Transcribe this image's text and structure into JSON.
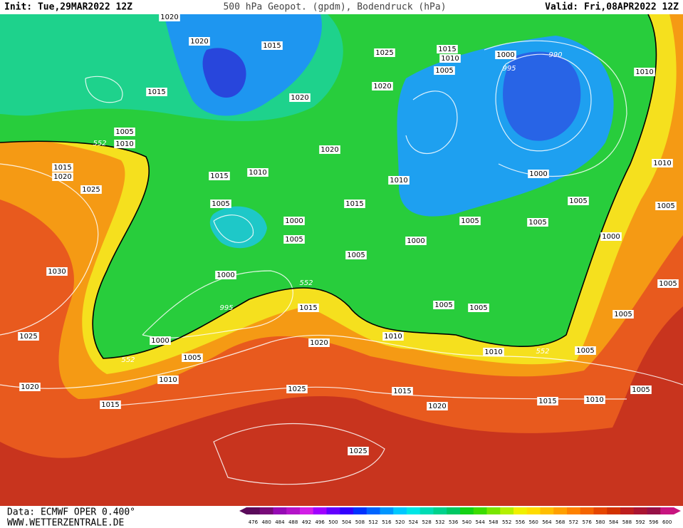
{
  "header": {
    "init": "Init: Tue,29MAR2022 12Z",
    "title": "500 hPa Geopot. (gpdm), Bodendruck (hPa)",
    "valid": "Valid: Fri,08APR2022 12Z"
  },
  "footer": {
    "source": "Data: ECMWF OPER 0.400°",
    "site": "WWW.WETTERZENTRALE.DE"
  },
  "map": {
    "contour_labels": [
      1020,
      1020,
      1015,
      1015,
      1005,
      552,
      1010,
      1015,
      1020,
      1025,
      1030,
      1025,
      1020,
      1015,
      1015,
      1010,
      1005,
      1000,
      1005,
      1000,
      995,
      1000,
      1005,
      552,
      1010,
      1020,
      1025,
      1025,
      1015,
      552,
      1020,
      1020,
      1025,
      1020,
      1015,
      1010,
      1005,
      1000,
      995,
      990,
      1010,
      1000,
      1010,
      1015,
      1005,
      1005,
      1005,
      1000,
      1005,
      1000,
      1005,
      1010,
      1005,
      1005,
      1010,
      1010,
      552,
      1005,
      1005,
      1015,
      1020,
      1015,
      1010,
      1005,
      1005
    ]
  },
  "legend": {
    "labels": [
      476,
      480,
      484,
      488,
      492,
      496,
      500,
      504,
      508,
      512,
      516,
      520,
      524,
      528,
      532,
      536,
      540,
      544,
      548,
      552,
      556,
      560,
      564,
      568,
      572,
      576,
      580,
      584,
      588,
      592,
      596,
      600
    ],
    "colors": [
      "#5a0a5a",
      "#780a78",
      "#960ab4",
      "#b414c8",
      "#d21ee6",
      "#a000ff",
      "#6400ff",
      "#3200ff",
      "#0032ff",
      "#0064ff",
      "#0096ff",
      "#00c8ff",
      "#00e6e6",
      "#00dcb4",
      "#00d28c",
      "#00c864",
      "#14d214",
      "#3cdc00",
      "#78e600",
      "#b4f000",
      "#f0f000",
      "#ffdc00",
      "#ffbe00",
      "#ffa000",
      "#ff8200",
      "#f56400",
      "#e64600",
      "#d23200",
      "#be1e1e",
      "#aa1432",
      "#961046",
      "#c8147f"
    ]
  }
}
